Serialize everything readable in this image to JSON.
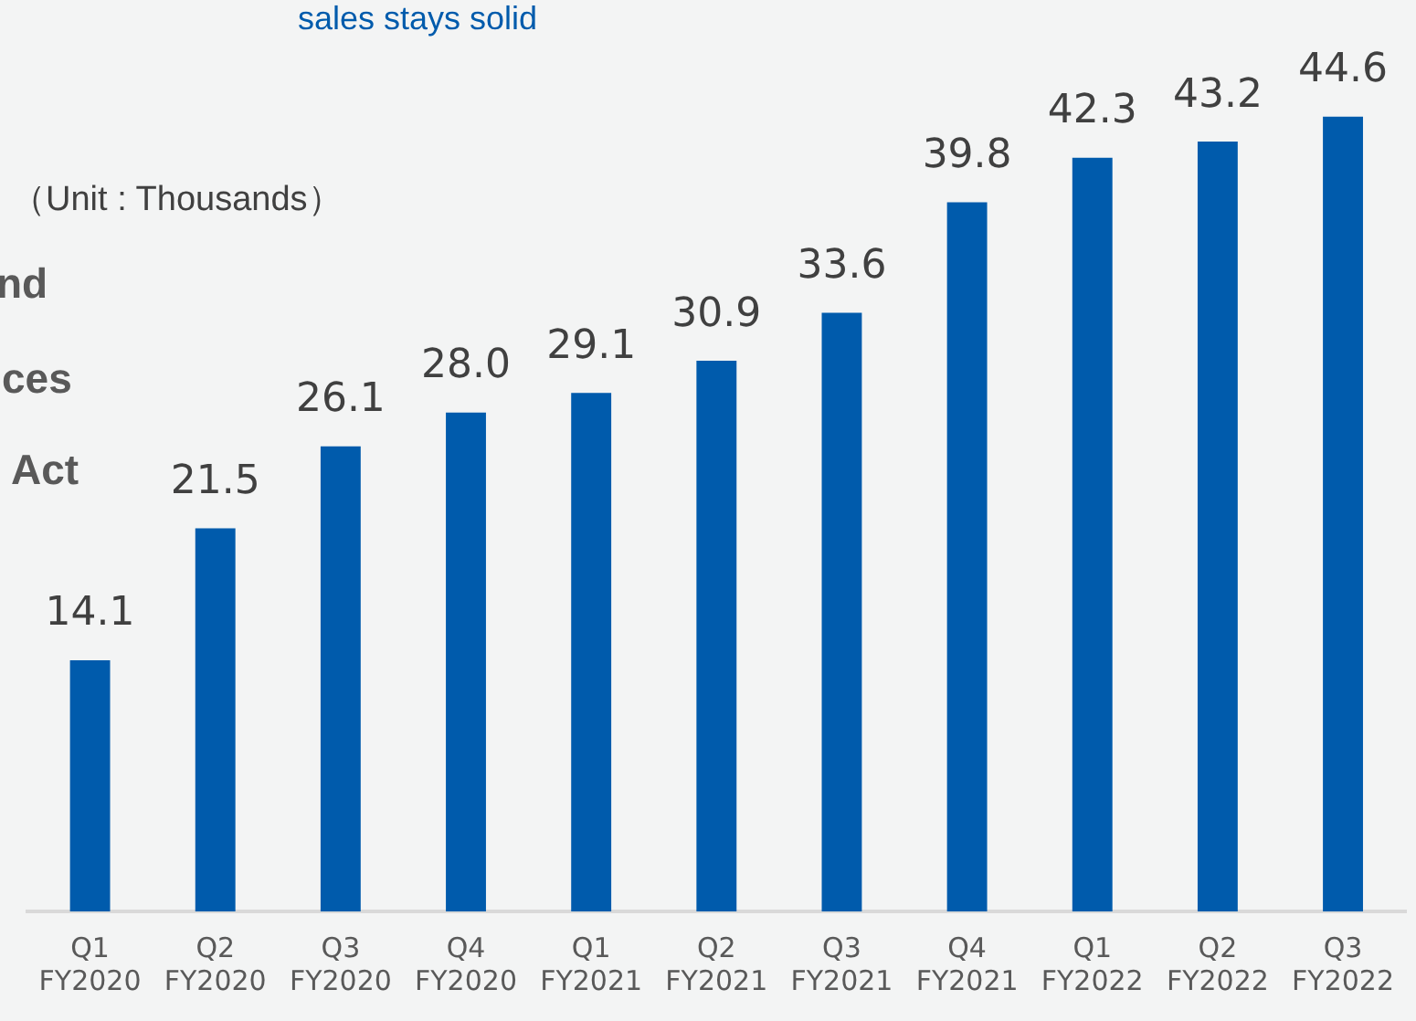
{
  "chart_data": {
    "type": "bar",
    "categories": [
      "Q1 FY2020",
      "Q2 FY2020",
      "Q3 FY2020",
      "Q4 FY2020",
      "Q1 FY2021",
      "Q2 FY2021",
      "Q3 FY2021",
      "Q4 FY2021",
      "Q1 FY2022",
      "Q2 FY2022",
      "Q3 FY2022"
    ],
    "values": [
      14.1,
      21.5,
      26.1,
      28.0,
      29.1,
      30.9,
      33.6,
      39.8,
      42.3,
      43.2,
      44.6
    ],
    "color": "#005bac",
    "value_labels": [
      "14.1",
      "21.5",
      "26.1",
      "28.0",
      "29.1",
      "30.9",
      "33.6",
      "39.8",
      "42.3",
      "43.2",
      "44.6"
    ],
    "tick_labels": "x",
    "grid": false,
    "legend": false,
    "annotations": [
      "sales stays solid",
      "（Unit : Thousands）",
      "nd",
      "ces",
      "Act"
    ]
  }
}
